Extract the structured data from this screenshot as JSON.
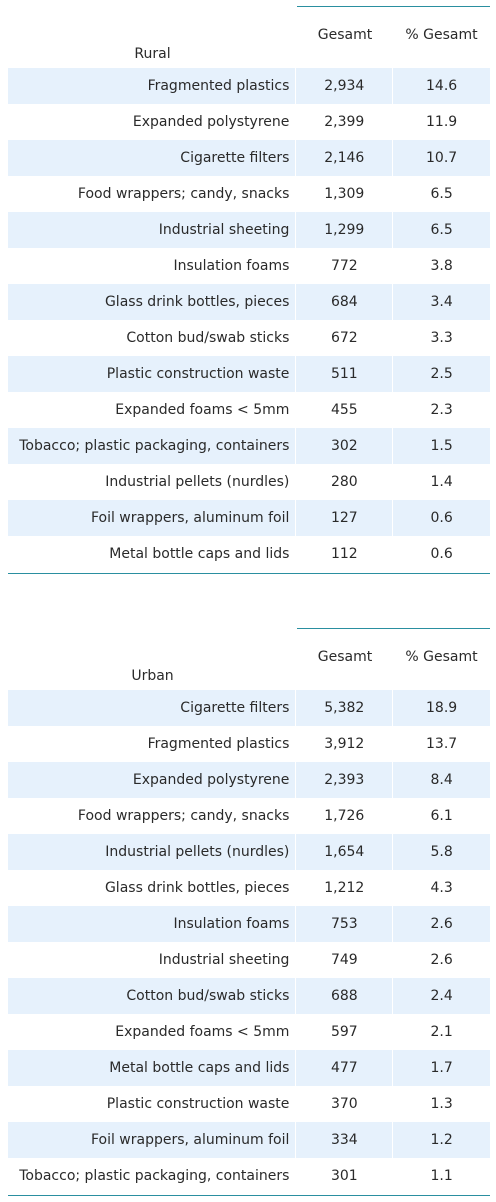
{
  "colors": {
    "stripe": "#e6f1fc",
    "rule": "#2a8fa0",
    "text": "#2a2a2a"
  },
  "columns": {
    "total": "Gesamt",
    "percent": "% Gesamt"
  },
  "tables": [
    {
      "group": "Rural",
      "rows": [
        {
          "item": "Fragmented plastics",
          "total": "2,934",
          "percent": "14.6"
        },
        {
          "item": "Expanded polystyrene",
          "total": "2,399",
          "percent": "11.9"
        },
        {
          "item": "Cigarette filters",
          "total": "2,146",
          "percent": "10.7"
        },
        {
          "item": "Food wrappers; candy, snacks",
          "total": "1,309",
          "percent": "6.5"
        },
        {
          "item": "Industrial sheeting",
          "total": "1,299",
          "percent": "6.5"
        },
        {
          "item": "Insulation foams",
          "total": "772",
          "percent": "3.8"
        },
        {
          "item": "Glass drink bottles, pieces",
          "total": "684",
          "percent": "3.4"
        },
        {
          "item": "Cotton bud/swab sticks",
          "total": "672",
          "percent": "3.3"
        },
        {
          "item": "Plastic construction waste",
          "total": "511",
          "percent": "2.5"
        },
        {
          "item": "Expanded foams < 5mm",
          "total": "455",
          "percent": "2.3"
        },
        {
          "item": "Tobacco; plastic packaging, containers",
          "total": "302",
          "percent": "1.5"
        },
        {
          "item": "Industrial pellets (nurdles)",
          "total": "280",
          "percent": "1.4"
        },
        {
          "item": "Foil wrappers, aluminum foil",
          "total": "127",
          "percent": "0.6"
        },
        {
          "item": "Metal bottle caps and lids",
          "total": "112",
          "percent": "0.6"
        }
      ]
    },
    {
      "group": "Urban",
      "rows": [
        {
          "item": "Cigarette filters",
          "total": "5,382",
          "percent": "18.9"
        },
        {
          "item": "Fragmented plastics",
          "total": "3,912",
          "percent": "13.7"
        },
        {
          "item": "Expanded polystyrene",
          "total": "2,393",
          "percent": "8.4"
        },
        {
          "item": "Food wrappers; candy, snacks",
          "total": "1,726",
          "percent": "6.1"
        },
        {
          "item": "Industrial pellets (nurdles)",
          "total": "1,654",
          "percent": "5.8"
        },
        {
          "item": "Glass drink bottles, pieces",
          "total": "1,212",
          "percent": "4.3"
        },
        {
          "item": "Insulation foams",
          "total": "753",
          "percent": "2.6"
        },
        {
          "item": "Industrial sheeting",
          "total": "749",
          "percent": "2.6"
        },
        {
          "item": "Cotton bud/swab sticks",
          "total": "688",
          "percent": "2.4"
        },
        {
          "item": "Expanded foams < 5mm",
          "total": "597",
          "percent": "2.1"
        },
        {
          "item": "Metal bottle caps and lids",
          "total": "477",
          "percent": "1.7"
        },
        {
          "item": "Plastic construction waste",
          "total": "370",
          "percent": "1.3"
        },
        {
          "item": "Foil wrappers, aluminum foil",
          "total": "334",
          "percent": "1.2"
        },
        {
          "item": "Tobacco; plastic packaging, containers",
          "total": "301",
          "percent": "1.1"
        }
      ]
    }
  ]
}
